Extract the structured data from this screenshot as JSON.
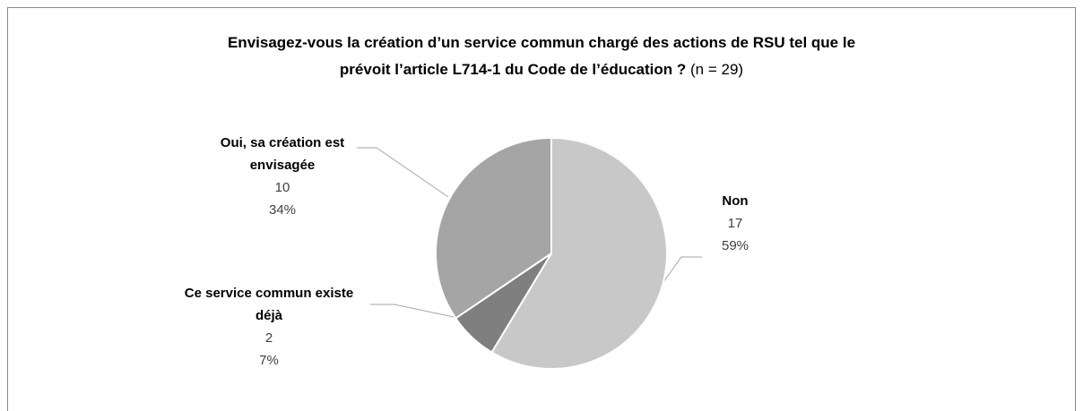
{
  "chart_data": {
    "type": "pie",
    "title": [
      "Envisagez-vous la création d’un service commun chargé des actions de RSU tel que le",
      "prévoit l’article L714-1 du Code de l’éducation ?"
    ],
    "subtitle": "(n = 29)",
    "categories": [
      "Non",
      "Ce service commun existe déjà",
      "Oui, sa création est envisagée"
    ],
    "values": [
      17,
      2,
      10
    ],
    "percent_labels": [
      "59%",
      "7%",
      "34%"
    ],
    "colors": [
      "#c8c8c8",
      "#7f7f7f",
      "#a5a5a5"
    ]
  }
}
